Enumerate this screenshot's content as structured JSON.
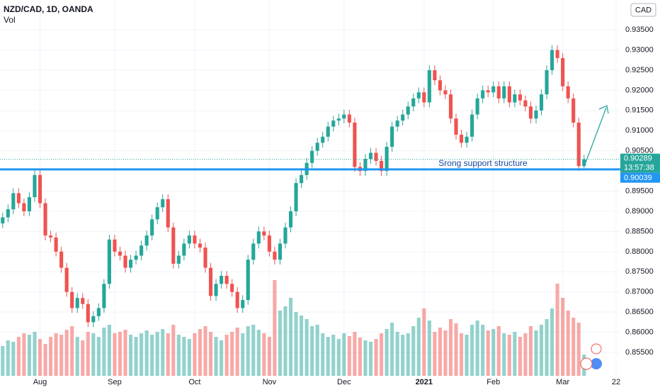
{
  "chart_data": {
    "type": "candlestick",
    "title": "NZD/CAD, 1D, OANDA",
    "volume_label": "Vol",
    "currency": "CAD",
    "annotation": "Srong support structure",
    "countdown": "13:57:38",
    "support": 0.90039,
    "up_color": "#26a69a",
    "down_color": "#ef5350",
    "support_color": "#2196f3",
    "grid": true,
    "xlim": [
      -0.5,
      115.8
    ],
    "xticks": [
      {
        "value": 7,
        "label": "Aug"
      },
      {
        "value": 21,
        "label": "Sep"
      },
      {
        "value": 36,
        "label": "Oct"
      },
      {
        "value": 50,
        "label": "Nov"
      },
      {
        "value": 64,
        "label": "Dec"
      },
      {
        "value": 79,
        "label": "2021"
      },
      {
        "value": 92,
        "label": "Feb"
      },
      {
        "value": 105,
        "label": "Mar"
      },
      {
        "value": 115,
        "label": "22"
      }
    ],
    "ylim": [
      0.8492,
      0.9424
    ],
    "yticks": [
      {
        "value": 0.855,
        "label": "0.85500"
      },
      {
        "value": 0.86,
        "label": "0.86000"
      },
      {
        "value": 0.865,
        "label": "0.86500"
      },
      {
        "value": 0.87,
        "label": "0.87000"
      },
      {
        "value": 0.875,
        "label": "0.87500"
      },
      {
        "value": 0.88,
        "label": "0.88000"
      },
      {
        "value": 0.885,
        "label": "0.88500"
      },
      {
        "value": 0.89,
        "label": "0.89000"
      },
      {
        "value": 0.895,
        "label": "0.89500"
      },
      {
        "value": 0.905,
        "label": "0.90500"
      },
      {
        "value": 0.91,
        "label": "0.91000"
      },
      {
        "value": 0.915,
        "label": "0.91500"
      },
      {
        "value": 0.92,
        "label": "0.92000"
      },
      {
        "value": 0.925,
        "label": "0.92500"
      },
      {
        "value": 0.93,
        "label": "0.93000"
      },
      {
        "value": 0.935,
        "label": "0.93500"
      }
    ],
    "open": [
      0.887,
      0.8885,
      0.8905,
      0.8945,
      0.892,
      0.89,
      0.8935,
      0.899,
      0.892,
      0.884,
      0.8835,
      0.88,
      0.876,
      0.87,
      0.866,
      0.8685,
      0.867,
      0.8625,
      0.864,
      0.866,
      0.872,
      0.883,
      0.88,
      0.879,
      0.876,
      0.878,
      0.879,
      0.8815,
      0.884,
      0.888,
      0.891,
      0.893,
      0.886,
      0.877,
      0.879,
      0.882,
      0.884,
      0.882,
      0.881,
      0.876,
      0.869,
      0.872,
      0.874,
      0.872,
      0.87,
      0.866,
      0.868,
      0.878,
      0.882,
      0.885,
      0.884,
      0.88,
      0.878,
      0.882,
      0.886,
      0.89,
      0.897,
      0.899,
      0.902,
      0.905,
      0.907,
      0.9085,
      0.911,
      0.9125,
      0.913,
      0.914,
      0.912,
      0.901,
      0.9,
      0.903,
      0.9045,
      0.9025,
      0.9,
      0.906,
      0.911,
      0.9125,
      0.914,
      0.916,
      0.918,
      0.9195,
      0.917,
      0.925,
      0.9225,
      0.92,
      0.919,
      0.913,
      0.909,
      0.907,
      0.9085,
      0.914,
      0.918,
      0.92,
      0.9195,
      0.921,
      0.918,
      0.921,
      0.917,
      0.919,
      0.9175,
      0.916,
      0.913,
      0.915,
      0.919,
      0.925,
      0.93,
      0.928,
      0.921,
      0.918,
      0.912,
      0.9012
    ],
    "high": [
      0.8897,
      0.8917,
      0.8957,
      0.8957,
      0.8932,
      0.8947,
      0.9002,
      0.9002,
      0.8932,
      0.8852,
      0.8847,
      0.8812,
      0.8772,
      0.8712,
      0.8697,
      0.8697,
      0.8682,
      0.8652,
      0.8672,
      0.8732,
      0.8842,
      0.8842,
      0.8812,
      0.8802,
      0.8792,
      0.8802,
      0.8827,
      0.8852,
      0.8892,
      0.8922,
      0.8942,
      0.8942,
      0.8872,
      0.8802,
      0.8832,
      0.8852,
      0.8852,
      0.8832,
      0.8822,
      0.8772,
      0.8732,
      0.8752,
      0.8752,
      0.8732,
      0.8712,
      0.8692,
      0.8792,
      0.8832,
      0.8862,
      0.8862,
      0.8852,
      0.8812,
      0.8832,
      0.8872,
      0.8912,
      0.8982,
      0.9002,
      0.9032,
      0.9062,
      0.9082,
      0.9097,
      0.9122,
      0.9137,
      0.9142,
      0.9152,
      0.9152,
      0.9132,
      0.9022,
      0.9042,
      0.9057,
      0.9057,
      0.9037,
      0.9072,
      0.9122,
      0.9137,
      0.9152,
      0.9172,
      0.9192,
      0.9207,
      0.9207,
      0.9262,
      0.9262,
      0.9237,
      0.9212,
      0.9202,
      0.9142,
      0.9102,
      0.9097,
      0.9152,
      0.9192,
      0.9212,
      0.9212,
      0.9222,
      0.9222,
      0.9222,
      0.9222,
      0.9202,
      0.9202,
      0.9187,
      0.9172,
      0.9162,
      0.9202,
      0.9262,
      0.9312,
      0.9312,
      0.9292,
      0.9222,
      0.9192,
      0.9132,
      0.904
    ],
    "low": [
      0.8858,
      0.8873,
      0.8893,
      0.8908,
      0.8888,
      0.8888,
      0.8923,
      0.8908,
      0.8828,
      0.8823,
      0.8788,
      0.8748,
      0.8688,
      0.8648,
      0.8648,
      0.8658,
      0.8613,
      0.8613,
      0.8628,
      0.8648,
      0.8708,
      0.8788,
      0.8778,
      0.8748,
      0.8748,
      0.8768,
      0.8778,
      0.8803,
      0.8828,
      0.8868,
      0.8898,
      0.8848,
      0.8758,
      0.8758,
      0.8778,
      0.8808,
      0.8808,
      0.8798,
      0.8748,
      0.8678,
      0.8678,
      0.8708,
      0.8708,
      0.8688,
      0.8648,
      0.8648,
      0.8668,
      0.8768,
      0.8808,
      0.8828,
      0.8788,
      0.8768,
      0.8768,
      0.8808,
      0.8848,
      0.8888,
      0.8958,
      0.8978,
      0.9008,
      0.9038,
      0.9058,
      0.9073,
      0.9098,
      0.9113,
      0.9118,
      0.9108,
      0.8998,
      0.8988,
      0.8988,
      0.9018,
      0.9013,
      0.8988,
      0.8988,
      0.9048,
      0.9098,
      0.9113,
      0.9128,
      0.9148,
      0.9168,
      0.9158,
      0.9158,
      0.9213,
      0.9188,
      0.9178,
      0.9118,
      0.9078,
      0.9058,
      0.9058,
      0.9073,
      0.9128,
      0.9168,
      0.9183,
      0.9183,
      0.9168,
      0.9168,
      0.9158,
      0.9158,
      0.9163,
      0.9148,
      0.9118,
      0.9118,
      0.9138,
      0.9178,
      0.9238,
      0.9268,
      0.9198,
      0.9168,
      0.9108,
      0.9,
      0.9003
    ],
    "close": [
      0.8885,
      0.8905,
      0.8945,
      0.892,
      0.89,
      0.8935,
      0.899,
      0.892,
      0.884,
      0.8835,
      0.88,
      0.876,
      0.87,
      0.866,
      0.8685,
      0.867,
      0.8625,
      0.864,
      0.866,
      0.872,
      0.883,
      0.88,
      0.879,
      0.876,
      0.878,
      0.879,
      0.8815,
      0.884,
      0.888,
      0.891,
      0.893,
      0.886,
      0.877,
      0.879,
      0.882,
      0.884,
      0.882,
      0.881,
      0.876,
      0.869,
      0.872,
      0.874,
      0.872,
      0.87,
      0.866,
      0.868,
      0.878,
      0.882,
      0.885,
      0.884,
      0.88,
      0.878,
      0.882,
      0.886,
      0.89,
      0.897,
      0.899,
      0.902,
      0.905,
      0.907,
      0.9085,
      0.911,
      0.9125,
      0.913,
      0.914,
      0.912,
      0.901,
      0.9,
      0.903,
      0.9045,
      0.9025,
      0.9,
      0.906,
      0.911,
      0.9125,
      0.914,
      0.916,
      0.918,
      0.9195,
      0.917,
      0.925,
      0.9225,
      0.92,
      0.919,
      0.913,
      0.909,
      0.907,
      0.9085,
      0.914,
      0.918,
      0.92,
      0.9195,
      0.921,
      0.918,
      0.921,
      0.917,
      0.919,
      0.9175,
      0.916,
      0.913,
      0.915,
      0.919,
      0.925,
      0.93,
      0.928,
      0.921,
      0.918,
      0.912,
      0.9012,
      0.90289
    ],
    "volume": [
      42,
      50,
      48,
      55,
      60,
      58,
      62,
      52,
      45,
      55,
      60,
      58,
      65,
      70,
      55,
      50,
      62,
      60,
      55,
      68,
      72,
      60,
      62,
      65,
      58,
      55,
      60,
      64,
      58,
      62,
      66,
      60,
      72,
      58,
      55,
      52,
      60,
      66,
      70,
      62,
      55,
      50,
      58,
      62,
      68,
      60,
      70,
      72,
      65,
      60,
      55,
      135,
      92,
      98,
      110,
      90,
      85,
      80,
      70,
      72,
      60,
      55,
      58,
      52,
      60,
      56,
      62,
      54,
      50,
      48,
      52,
      60,
      66,
      75,
      62,
      58,
      60,
      70,
      82,
      95,
      78,
      62,
      68,
      64,
      80,
      74,
      60,
      58,
      72,
      78,
      72,
      64,
      66,
      70,
      60,
      58,
      62,
      55,
      60,
      70,
      64,
      72,
      80,
      95,
      130,
      110,
      92,
      82,
      75,
      30
    ]
  }
}
